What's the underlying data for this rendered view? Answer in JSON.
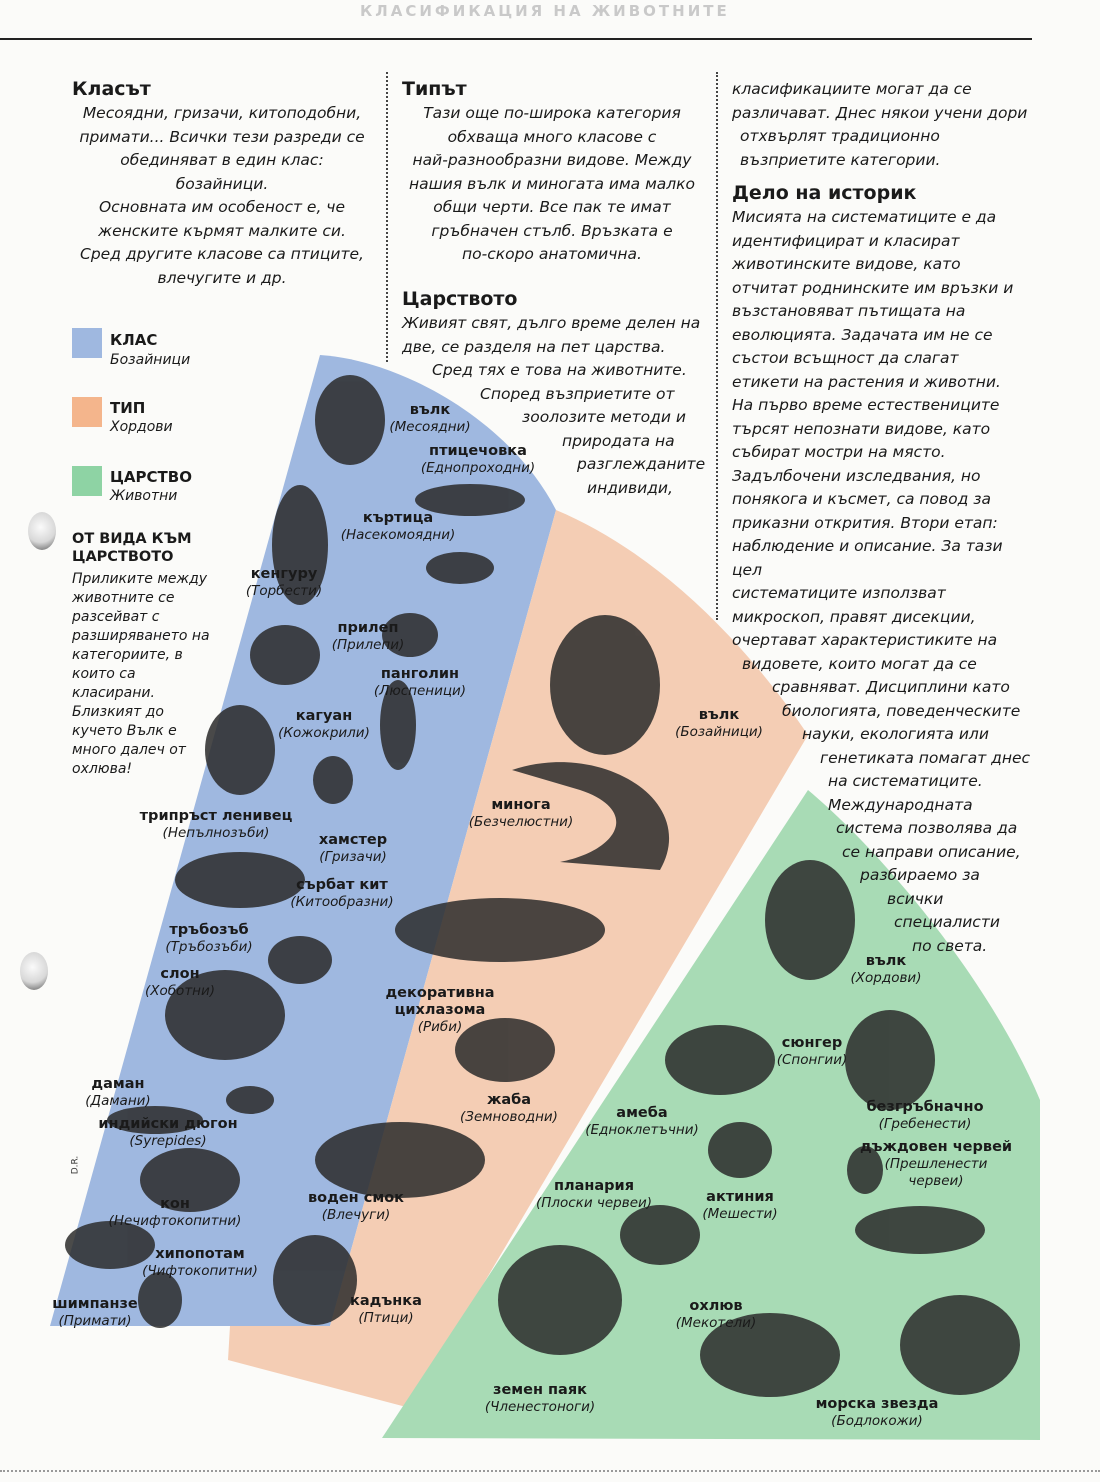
{
  "header": {
    "faint_title": "КЛАСИФИКАЦИЯ НА ЖИВОТНИТЕ"
  },
  "col1": {
    "title": "Класът",
    "lines": [
      "Месоядни, гризачи, китоподобни,",
      "примати... Всички тези разреди се",
      "обединяват в един клас: бозайници.",
      "Основната им особеност е, че",
      "женските кърмят малките си.",
      "Сред другите класове са птиците,",
      "влечугите и др."
    ]
  },
  "col2": {
    "title": "Типът",
    "lines": [
      "Тази още по-широка категория",
      "обхваща много класове с",
      "най-разнообразни видове. Между",
      "нашия вълк и миногата има малко",
      "общи черти. Все пак те имат",
      "гръбначен стълб. Връзката е",
      "по-скоро анатомична."
    ],
    "title2": "Царството",
    "lines2": [
      "Живият свят, дълго време делен на",
      "две, се разделя на пет царства.",
      "Сред тях е това на животните.",
      "Според възприетите от",
      "зоолозите методи и",
      "природата на",
      "разглежданите",
      "индивиди,"
    ]
  },
  "col3": {
    "lines_top": [
      "класификациите могат да се",
      "различават. Днес някои учени дори",
      "отхвърлят традиционно",
      "възприетите категории."
    ],
    "title": "Дело на историк",
    "lines": [
      "Мисията на систематиците е да",
      "идентифицират и класират",
      "животинските видове, като",
      "отчитат роднинските им връзки и",
      "възстановяват пътищата на",
      "еволюцията. Задачата им не се",
      "състои всъщност да слагат",
      "етикети на растения и животни.",
      "На първо време естествениците",
      "търсят непознати видове, като",
      "събират мостри на място.",
      "Задълбочени изследвания, но",
      "понякога и късмет, са повод за",
      "приказни открития. Втори етап:",
      "наблюдение и описание. За тази цел",
      "систематиците използват",
      "микроскоп, правят дисекции,",
      "очертават характеристиките на",
      "видовете, които могат да се",
      "сравняват. Дисциплини като",
      "биологията, поведенческите",
      "науки, екологията или",
      "генетиката помагат днес",
      "на систематиците.",
      "Международната",
      "система позволява да",
      "се направи описание,",
      "разбираемо за",
      "всички",
      "специалисти",
      "по света."
    ]
  },
  "legend": [
    {
      "title": "КЛАС",
      "sub": "Бозайници",
      "color": "#9fb8e0"
    },
    {
      "title": "ТИП",
      "sub": "Хордови",
      "color": "#f4b58c"
    },
    {
      "title": "ЦАРСТВО",
      "sub": "Животни",
      "color": "#8ed3a4"
    }
  ],
  "sidebar": {
    "title": "ОТ ВИДА КЪМ ЦАРСТВОТО",
    "text": "Приликите между животните се разсейват с разширяването на категориите, в които са класирани. Близкият до кучето Вълк е много далеч от охлюва!"
  },
  "class_labels": [
    {
      "n": "вълк",
      "s": "(Месоядни)"
    },
    {
      "n": "птицечовка",
      "s": "(Еднопроходни)"
    },
    {
      "n": "къртица",
      "s": "(Насекомоядни)"
    },
    {
      "n": "кенгуру",
      "s": "(Торбести)"
    },
    {
      "n": "прилеп",
      "s": "(Прилепи)"
    },
    {
      "n": "панголин",
      "s": "(Люспеници)"
    },
    {
      "n": "кагуан",
      "s": "(Кожокрили)"
    },
    {
      "n": "трипръст ленивец",
      "s": "(Непълнозъби)"
    },
    {
      "n": "хамстер",
      "s": "(Гризачи)"
    },
    {
      "n": "сърбат кит",
      "s": "(Китообразни)"
    },
    {
      "n": "тръбозъб",
      "s": "(Тръбозъби)"
    },
    {
      "n": "слон",
      "s": "(Хоботни)"
    },
    {
      "n": "даман",
      "s": "(Дамани)"
    },
    {
      "n": "индийски дюгон",
      "s": "(Syrepides)"
    },
    {
      "n": "кон",
      "s": "(Нечифтокопитни)"
    },
    {
      "n": "хипопотам",
      "s": "(Чифтокопитни)"
    },
    {
      "n": "шимпанзе",
      "s": "(Примати)"
    }
  ],
  "phylum_labels": [
    {
      "n": "вълк",
      "s": "(Бозайници)"
    },
    {
      "n": "минога",
      "s": "(Безчелюстни)"
    },
    {
      "n": "декоративна цихлазома",
      "s": "(Риби)"
    },
    {
      "n": "жаба",
      "s": "(Земноводни)"
    },
    {
      "n": "воден смок",
      "s": "(Влечуги)"
    },
    {
      "n": "кадънка",
      "s": "(Птици)"
    }
  ],
  "kingdom_labels": [
    {
      "n": "вълк",
      "s": "(Хордови)"
    },
    {
      "n": "сюнгер",
      "s": "(Спонгии)"
    },
    {
      "n": "амеба",
      "s": "(Едноклетъчни)"
    },
    {
      "n": "безгръбначно",
      "s": "(Гребенести)"
    },
    {
      "n": "дъждовен червей",
      "s": "(Прешленести червеи)"
    },
    {
      "n": "планария",
      "s": "(Плоски червеи)"
    },
    {
      "n": "актиния",
      "s": "(Мешести)"
    },
    {
      "n": "охлюв",
      "s": "(Мекотели)"
    },
    {
      "n": "земен паяк",
      "s": "(Членестоноги)"
    },
    {
      "n": "морска звезда",
      "s": "(Бодлокожи)"
    }
  ],
  "credit": "D.R."
}
